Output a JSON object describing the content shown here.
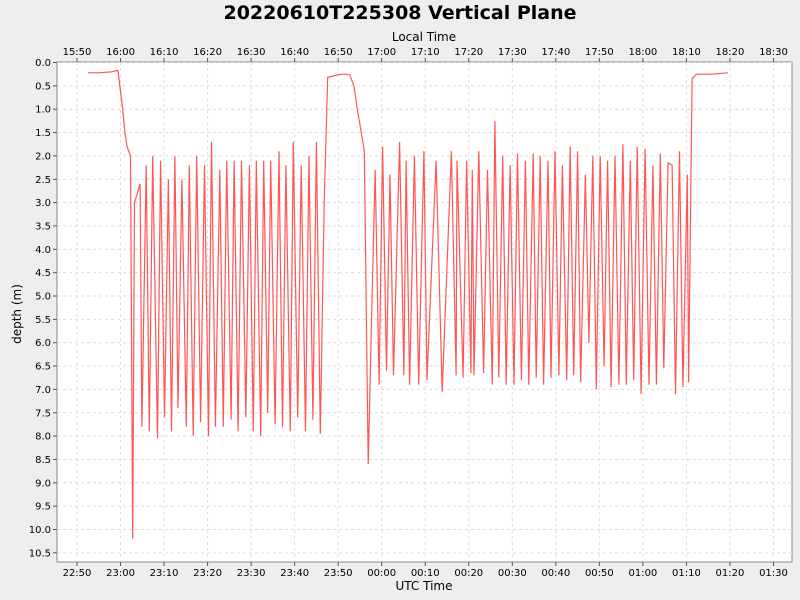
{
  "chart_data": {
    "type": "line",
    "title": "20220610T225308 Vertical Plane",
    "xlabel": "UTC Time",
    "x2label": "Local Time",
    "ylabel": "depth (m)",
    "ylim": [
      10.5,
      0.0
    ],
    "y_inverted": true,
    "grid": true,
    "utc_ticks": [
      "22:50",
      "23:00",
      "23:10",
      "23:20",
      "23:30",
      "23:40",
      "23:50",
      "00:00",
      "00:10",
      "00:20",
      "00:30",
      "00:40",
      "00:50",
      "01:00",
      "01:10",
      "01:20",
      "01:30"
    ],
    "local_ticks": [
      "15:50",
      "16:00",
      "16:10",
      "16:20",
      "16:30",
      "16:40",
      "16:50",
      "17:00",
      "17:10",
      "17:20",
      "17:30",
      "17:40",
      "17:50",
      "18:00",
      "18:10",
      "18:20",
      "18:30"
    ],
    "y_ticks": [
      "0.0",
      "0.5",
      "1.0",
      "1.5",
      "2.0",
      "2.5",
      "3.0",
      "3.5",
      "4.0",
      "4.5",
      "5.0",
      "5.5",
      "6.0",
      "6.5",
      "7.0",
      "7.5",
      "8.0",
      "8.5",
      "9.0",
      "9.5",
      "10.0",
      "10.5"
    ],
    "series": [
      {
        "color": "#ff5555",
        "x_minutes_since_2250": [
          2.5,
          5.0,
          8.0,
          9.4,
          10.5,
          11.0,
          11.5,
          12.3,
          12.8,
          13.2,
          14.5,
          14.9,
          15.9,
          16.6,
          17.4,
          18.5,
          19.2,
          20.1,
          21.0,
          21.7,
          22.5,
          23.2,
          24.1,
          25.1,
          25.8,
          26.7,
          27.5,
          28.4,
          29.3,
          30.2,
          30.9,
          31.8,
          32.8,
          33.6,
          34.4,
          35.4,
          36.1,
          37.0,
          37.8,
          38.8,
          39.6,
          40.5,
          41.2,
          42.2,
          42.9,
          43.8,
          44.5,
          45.5,
          46.4,
          47.2,
          48.0,
          49.0,
          49.7,
          50.7,
          51.5,
          52.5,
          53.3,
          54.2,
          55.0,
          55.9,
          56.8,
          57.6,
          58.4,
          59.2,
          60.1,
          61.0,
          61.8,
          62.7,
          63.6,
          64.4,
          65.3,
          66.0,
          66.9,
          67.8,
          68.5,
          69.4,
          70.2,
          71.1,
          71.9,
          72.7,
          74.1,
          75.1,
          75.6,
          76.4,
          77.5,
          78.5,
          79.7,
          80.4,
          82.5,
          83.9,
          86.0,
          87.1,
          87.3,
          88.7,
          89.5,
          90.5,
          90.8,
          91.2,
          92.3,
          93.4,
          94.3,
          95.4,
          96.0,
          96.9,
          97.8,
          98.6,
          99.5,
          100.4,
          101.2,
          102.1,
          103.0,
          103.8,
          104.8,
          105.5,
          106.4,
          107.2,
          108.2,
          108.9,
          109.8,
          110.7,
          111.5,
          112.5,
          113.3,
          114.1,
          115.0,
          115.7,
          116.8,
          117.6,
          118.5,
          119.3,
          120.2,
          121.1,
          121.9,
          122.7,
          123.6,
          124.5,
          125.4,
          126.2,
          127.1,
          127.9,
          128.7,
          129.6,
          130.5,
          131.4,
          132.3,
          133.1,
          134.0,
          134.8,
          135.8,
          136.7,
          137.5,
          138.4,
          139.2,
          140.2,
          140.5,
          141.3,
          142.3,
          142.6,
          143.5,
          144.8,
          145.5,
          147.0,
          149.5,
          150.5,
          151.4,
          152.0
        ],
        "y_depth_m": [
          0.22,
          0.22,
          0.2,
          0.17,
          1.0,
          1.5,
          1.8,
          2.0,
          10.2,
          3.0,
          2.6,
          7.8,
          2.2,
          7.9,
          2.0,
          8.05,
          2.1,
          7.6,
          2.5,
          7.9,
          2.0,
          7.4,
          2.5,
          7.8,
          2.2,
          8.0,
          2.0,
          7.7,
          2.2,
          8.0,
          1.7,
          7.8,
          2.3,
          7.8,
          2.1,
          7.65,
          2.1,
          7.9,
          2.1,
          7.6,
          2.2,
          7.9,
          2.1,
          8.0,
          2.1,
          7.5,
          2.1,
          7.75,
          1.9,
          7.8,
          2.2,
          7.9,
          1.7,
          7.6,
          2.2,
          7.9,
          2.0,
          7.65,
          1.7,
          7.95,
          2.9,
          0.32,
          0.3,
          0.28,
          0.26,
          0.25,
          0.25,
          0.27,
          0.5,
          1.0,
          1.5,
          1.9,
          8.6,
          5.0,
          2.3,
          6.9,
          1.8,
          6.6,
          2.4,
          6.7,
          1.7,
          6.7,
          2.1,
          6.9,
          2.0,
          6.9,
          1.9,
          6.8,
          2.1,
          7.05,
          1.9,
          6.7,
          2.1,
          6.75,
          2.1,
          6.65,
          2.3,
          6.7,
          1.9,
          6.65,
          2.3,
          6.9,
          1.25,
          6.75,
          2.0,
          6.9,
          2.2,
          6.9,
          1.95,
          6.8,
          2.1,
          6.9,
          1.95,
          6.75,
          2.0,
          6.9,
          2.1,
          6.75,
          1.9,
          6.7,
          2.2,
          6.8,
          1.8,
          6.7,
          1.9,
          6.85,
          2.4,
          6.0,
          2.0,
          7.0,
          2.0,
          6.5,
          2.1,
          6.95,
          2.0,
          6.9,
          1.75,
          6.9,
          2.1,
          6.8,
          1.8,
          7.1,
          1.85,
          6.9,
          2.2,
          6.9,
          1.95,
          6.55,
          2.15,
          2.2,
          7.1,
          1.9,
          6.95,
          2.4,
          6.85,
          0.35,
          0.25,
          0.25,
          0.25,
          0.25,
          0.25,
          0.24,
          0.22
        ]
      }
    ]
  }
}
